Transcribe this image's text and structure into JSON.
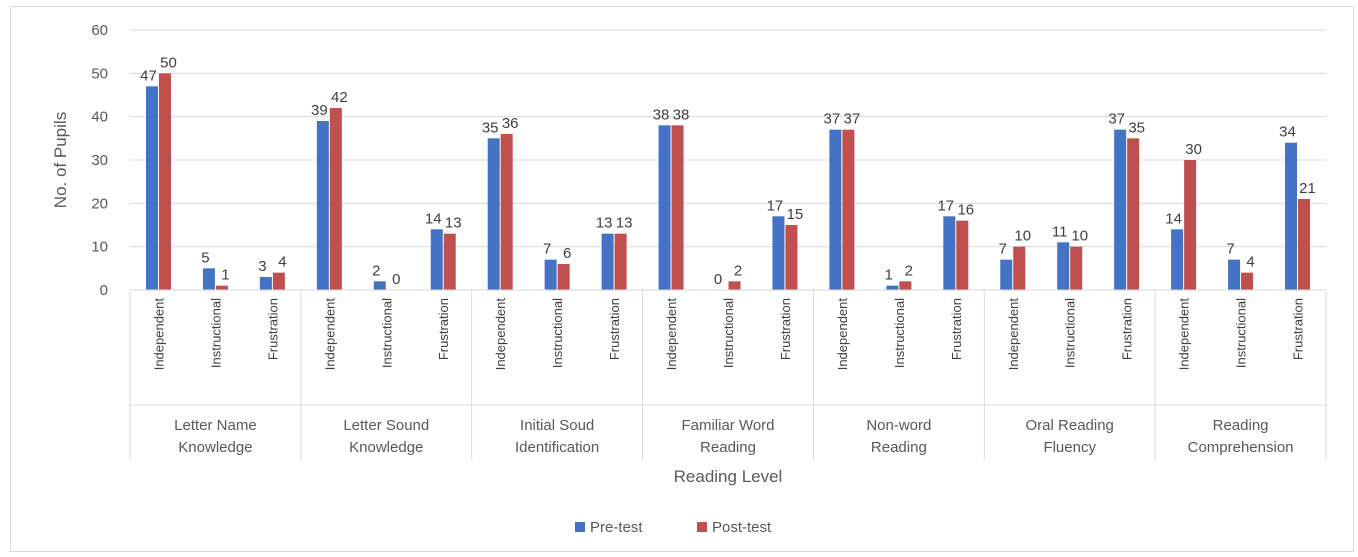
{
  "chart_data": {
    "type": "bar",
    "xlabel": "Reading Level",
    "ylabel": "No. of Pupils",
    "ylim": [
      0,
      60
    ],
    "yticks": [
      0,
      10,
      20,
      30,
      40,
      50,
      60
    ],
    "grid": true,
    "legend_position": "bottom",
    "groups": [
      {
        "name_lines": [
          "Letter Name",
          "Knowledge"
        ]
      },
      {
        "name_lines": [
          "Letter Sound",
          "Knowledge"
        ]
      },
      {
        "name_lines": [
          "Initial Soud",
          "Identification"
        ]
      },
      {
        "name_lines": [
          "Familiar Word",
          "Reading"
        ]
      },
      {
        "name_lines": [
          "Non-word",
          "Reading"
        ]
      },
      {
        "name_lines": [
          "Oral Reading",
          "Fluency"
        ]
      },
      {
        "name_lines": [
          "Reading",
          "Comprehension"
        ]
      }
    ],
    "categories": [
      "Independent",
      "Instructional",
      "Frustration",
      "Independent",
      "Instructional",
      "Frustration",
      "Independent",
      "Instructional",
      "Frustration",
      "Independent",
      "Instructional",
      "Frustration",
      "Independent",
      "Instructional",
      "Frustration",
      "Independent",
      "Instructional",
      "Frustration",
      "Independent",
      "Instructional",
      "Frustration"
    ],
    "series": [
      {
        "name": "Pre-test",
        "color": "#4472c4",
        "values": [
          47,
          5,
          3,
          39,
          2,
          14,
          35,
          7,
          13,
          38,
          0,
          17,
          37,
          1,
          17,
          7,
          11,
          37,
          14,
          7,
          34
        ]
      },
      {
        "name": "Post-test",
        "color": "#c0504d",
        "values": [
          50,
          1,
          4,
          42,
          0,
          13,
          36,
          6,
          13,
          38,
          2,
          15,
          37,
          2,
          16,
          10,
          10,
          35,
          30,
          4,
          21
        ]
      }
    ]
  }
}
